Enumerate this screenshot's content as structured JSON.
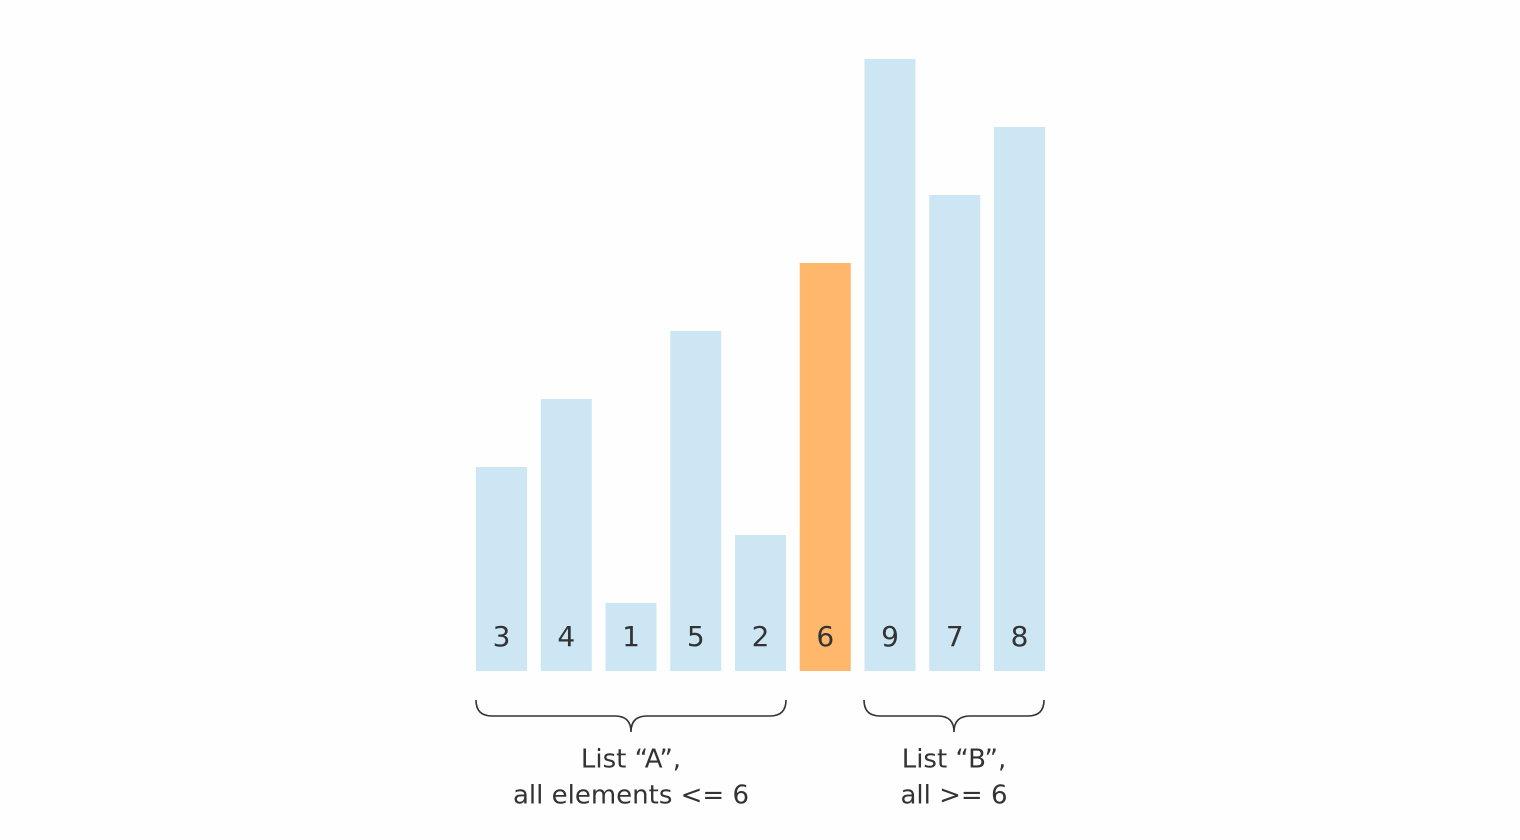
{
  "chart_data": {
    "type": "bar",
    "values": [
      3,
      4,
      1,
      5,
      2,
      6,
      9,
      7,
      8
    ],
    "colors": [
      "#cde6f4",
      "#cde6f4",
      "#cde6f4",
      "#cde6f4",
      "#cde6f4",
      "#ffb86b",
      "#cde6f4",
      "#cde6f4",
      "#cde6f4"
    ],
    "annotations": [
      {
        "lines": [
          "List “A”,",
          "all elements <= 6"
        ]
      },
      {
        "lines": [
          "List “B”,",
          "all >= 6"
        ]
      }
    ]
  }
}
